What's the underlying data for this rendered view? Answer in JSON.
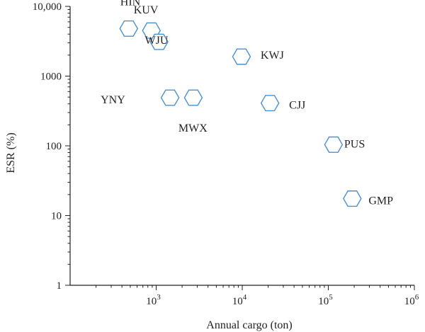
{
  "chart_data": {
    "type": "scatter",
    "title": "",
    "xlabel": "Annual cargo (ton)",
    "ylabel": "ESR (%)",
    "xscale": "log",
    "yscale": "log",
    "xlim": [
      100,
      1000000
    ],
    "ylim": [
      1,
      10000
    ],
    "grid": false,
    "marker": "hexagon",
    "marker_color": "#4f8fc9",
    "x_ticks": [
      1000,
      10000,
      100000,
      1000000
    ],
    "x_tick_labels": [
      {
        "base": "10",
        "exp": "3"
      },
      {
        "base": "10",
        "exp": "4"
      },
      {
        "base": "10",
        "exp": "5"
      },
      {
        "base": "10",
        "exp": "6"
      }
    ],
    "y_ticks": [
      1,
      10,
      100,
      1000,
      10000
    ],
    "y_tick_labels": [
      "1",
      "10",
      "100",
      "1000",
      "10,000"
    ],
    "points": [
      {
        "label": "HIN",
        "x": 480,
        "y": 4800
      },
      {
        "label": "KUV",
        "x": 880,
        "y": 4500
      },
      {
        "label": "WJU",
        "x": 1080,
        "y": 3100
      },
      {
        "label": "KWJ",
        "x": 9800,
        "y": 1900
      },
      {
        "label": "YNY",
        "x": 1450,
        "y": 490
      },
      {
        "label": "MWX",
        "x": 2700,
        "y": 490
      },
      {
        "label": "CJJ",
        "x": 21000,
        "y": 410
      },
      {
        "label": "PUS",
        "x": 115000,
        "y": 104
      },
      {
        "label": "GMP",
        "x": 190000,
        "y": 17.5
      }
    ]
  }
}
